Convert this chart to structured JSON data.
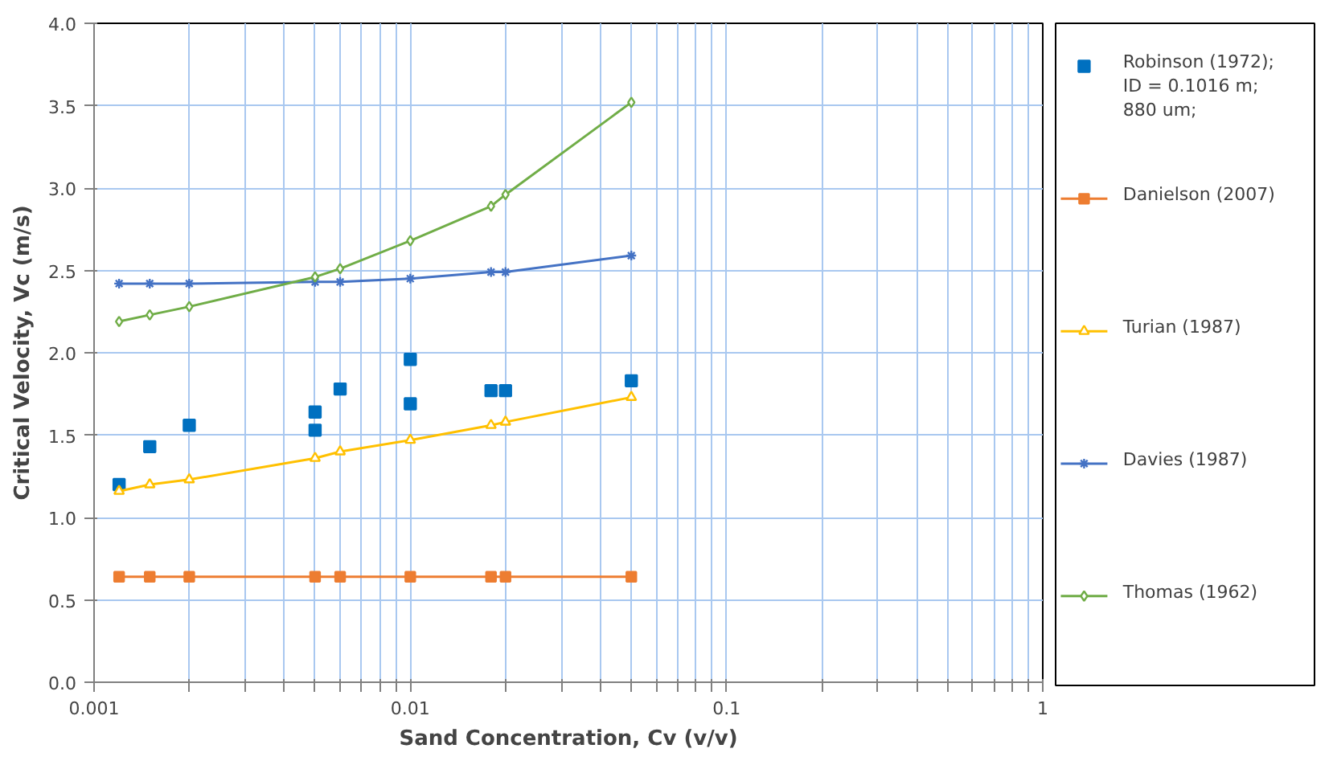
{
  "chart_data": {
    "type": "line",
    "xlabel": "Sand Concentration, Cv (v/v)",
    "ylabel": "Critical Velocity, Vc (m/s)",
    "log": "x",
    "grid": true,
    "legend": "right",
    "x": [
      0.0012,
      0.0015,
      0.002,
      0.005,
      0.006,
      0.01,
      0.018,
      0.02,
      0.05
    ],
    "xlim": [
      0.001,
      1
    ],
    "xticks": [
      {
        "value": 0.001,
        "label": "0.001"
      },
      {
        "value": 0.002,
        "label": null
      },
      {
        "value": 0.003,
        "label": null
      },
      {
        "value": 0.004,
        "label": null
      },
      {
        "value": 0.005,
        "label": null
      },
      {
        "value": 0.006,
        "label": null
      },
      {
        "value": 0.007,
        "label": null
      },
      {
        "value": 0.008,
        "label": null
      },
      {
        "value": 0.009,
        "label": null
      },
      {
        "value": 0.01,
        "label": "0.01"
      },
      {
        "value": 0.02,
        "label": null
      },
      {
        "value": 0.03,
        "label": null
      },
      {
        "value": 0.04,
        "label": null
      },
      {
        "value": 0.05,
        "label": null
      },
      {
        "value": 0.06,
        "label": null
      },
      {
        "value": 0.07,
        "label": null
      },
      {
        "value": 0.08,
        "label": null
      },
      {
        "value": 0.09,
        "label": null
      },
      {
        "value": 0.1,
        "label": "0.1"
      },
      {
        "value": 0.2,
        "label": null
      },
      {
        "value": 0.3,
        "label": null
      },
      {
        "value": 0.4,
        "label": null
      },
      {
        "value": 0.5,
        "label": null
      },
      {
        "value": 0.6,
        "label": null
      },
      {
        "value": 0.7,
        "label": null
      },
      {
        "value": 0.8,
        "label": null
      },
      {
        "value": 0.9,
        "label": null
      },
      {
        "value": 1,
        "label": "1"
      }
    ],
    "ylim": [
      0,
      4
    ],
    "yticks": [
      {
        "value": 0,
        "label": "0.0"
      },
      {
        "value": 0.5,
        "label": "0.5"
      },
      {
        "value": 1,
        "label": "1.0"
      },
      {
        "value": 1.5,
        "label": "1.5"
      },
      {
        "value": 2,
        "label": "2.0"
      },
      {
        "value": 2.5,
        "label": "2.5"
      },
      {
        "value": 3,
        "label": "3.0"
      },
      {
        "value": 3.5,
        "label": "3.5"
      },
      {
        "value": 4,
        "label": "4.0"
      }
    ],
    "series": [
      {
        "name": "Robinson (1972);\nID = 0.1016 m;\n880 um;",
        "type": "scatter",
        "marker": "square",
        "color": "#0070c0",
        "x": [
          0.0012,
          0.0015,
          0.002,
          0.005,
          0.005,
          0.006,
          0.01,
          0.01,
          0.018,
          0.02,
          0.05
        ],
        "values": [
          1.2,
          1.43,
          1.56,
          1.64,
          1.53,
          1.78,
          1.96,
          1.69,
          1.77,
          1.77,
          1.83
        ]
      },
      {
        "name": "Danielson (2007)",
        "marker": "square",
        "color": "#ed7d31",
        "values": [
          0.64,
          0.64,
          0.64,
          0.64,
          0.64,
          0.64,
          0.64,
          0.64,
          0.64
        ]
      },
      {
        "name": "Turian (1987)",
        "marker": "triangle",
        "color": "#ffc000",
        "values": [
          1.16,
          1.2,
          1.23,
          1.36,
          1.4,
          1.47,
          1.56,
          1.58,
          1.73
        ]
      },
      {
        "name": "Davies (1987)",
        "marker": "cross",
        "color": "#4472c4",
        "values": [
          2.42,
          2.42,
          2.42,
          2.43,
          2.43,
          2.45,
          2.49,
          2.49,
          2.59
        ]
      },
      {
        "name": "Thomas (1962)",
        "marker": "diamond",
        "color": "#70ad47",
        "values": [
          2.19,
          2.23,
          2.28,
          2.46,
          2.51,
          2.68,
          2.89,
          2.96,
          3.52
        ]
      }
    ]
  }
}
